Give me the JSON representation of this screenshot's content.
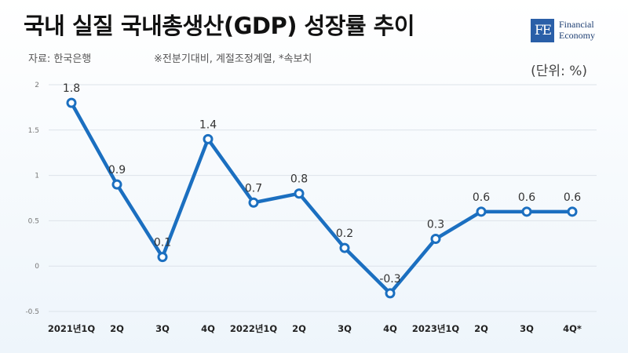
{
  "header": {
    "title": "국내 실질 국내총생산(GDP) 성장률 추이",
    "source": "자료: 한국은행",
    "note": "※전분기대비, 계절조정계열, *속보치",
    "unit": "(단위: %)"
  },
  "logo": {
    "mark": "FE",
    "line1": "Financial",
    "line2": "Economy"
  },
  "chart_data": {
    "type": "line",
    "title": "국내 실질 국내총생산(GDP) 성장률 추이",
    "categories": [
      "2021년1Q",
      "2Q",
      "3Q",
      "4Q",
      "2022년1Q",
      "2Q",
      "3Q",
      "4Q",
      "2023년1Q",
      "2Q",
      "3Q",
      "4Q*"
    ],
    "series": [
      {
        "values": [
          1.8,
          0.9,
          0.1,
          1.4,
          0.7,
          0.8,
          0.2,
          -0.3,
          0.3,
          0.6,
          0.6,
          0.6
        ],
        "labels": [
          "1.8",
          "0.9",
          "0.1",
          "1.4",
          "0.7",
          "0.8",
          "0.2",
          "-0.3",
          "0.3",
          "0.6",
          "0.6",
          "0.6"
        ]
      }
    ],
    "ylim": [
      -0.5,
      2
    ],
    "yticks": [
      -0.5,
      0,
      0.5,
      1,
      1.5,
      2
    ],
    "ytick_labels": [
      "-0.5",
      "0",
      "0.5",
      "1",
      "1.5",
      "2"
    ],
    "grid": true,
    "line_color": "#1b6fc0"
  }
}
